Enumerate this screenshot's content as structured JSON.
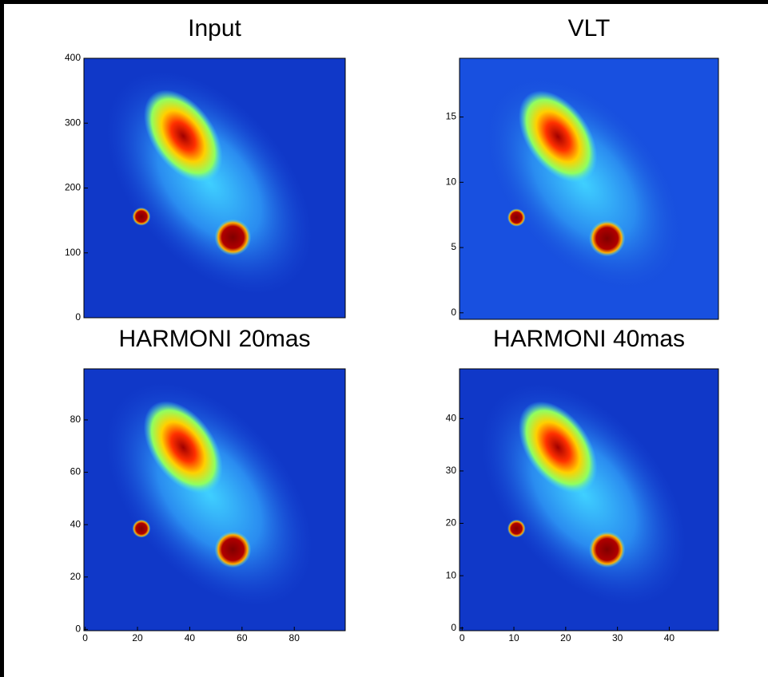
{
  "chart_data": [
    {
      "type": "heatmap",
      "title": "Input",
      "ylim": [
        0,
        400
      ],
      "yticks": [
        0,
        100,
        200,
        300,
        400
      ]
    },
    {
      "type": "heatmap",
      "title": "VLT",
      "ylim": [
        -0.5,
        19.5
      ],
      "yticks": [
        0,
        5,
        10,
        15
      ]
    },
    {
      "type": "heatmap",
      "title": "HARMONI 20mas",
      "xlim": [
        -0.5,
        99.5
      ],
      "xticks": [
        0,
        20,
        40,
        60,
        80
      ],
      "ylim": [
        -0.5,
        99.5
      ],
      "yticks": [
        0,
        20,
        40,
        60,
        80
      ]
    },
    {
      "type": "heatmap",
      "title": "HARMONI 40mas",
      "xlim": [
        -0.5,
        49.5
      ],
      "xticks": [
        0,
        10,
        20,
        30,
        40
      ],
      "ylim": [
        -0.5,
        49.5
      ],
      "yticks": [
        0,
        10,
        20,
        30,
        40
      ]
    }
  ]
}
